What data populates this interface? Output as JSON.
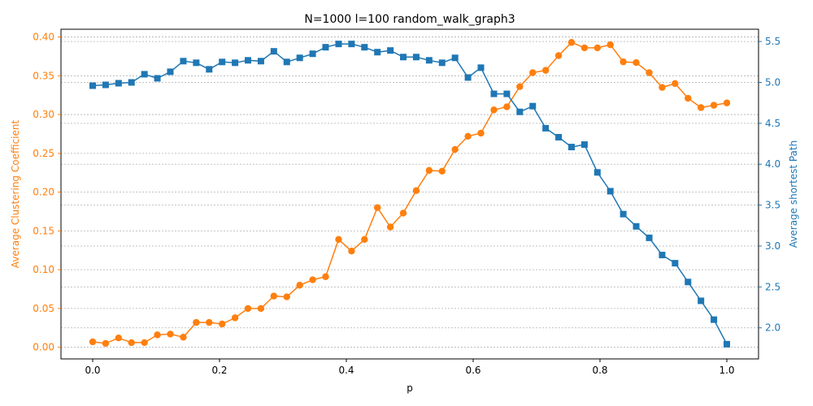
{
  "chart_data": {
    "type": "line",
    "title": "N=1000 l=100 random_walk_graph3",
    "xlabel": "p",
    "y1label": "Average Clustering Coefficient",
    "y2label": "Average shortest Path",
    "xlim": [
      -0.05,
      1.05
    ],
    "y1lim": [
      -0.015,
      0.41
    ],
    "y2lim": [
      1.62,
      5.65
    ],
    "x_ticks": [
      "0.0",
      "0.2",
      "0.4",
      "0.6",
      "0.8",
      "1.0"
    ],
    "x_tick_values": [
      0.0,
      0.2,
      0.4,
      0.6,
      0.8,
      1.0
    ],
    "y1_ticks": [
      "0.00",
      "0.05",
      "0.10",
      "0.15",
      "0.20",
      "0.25",
      "0.30",
      "0.35",
      "0.40"
    ],
    "y1_tick_values": [
      0.0,
      0.05,
      0.1,
      0.15,
      0.2,
      0.25,
      0.3,
      0.35,
      0.4
    ],
    "y2_ticks": [
      "2.0",
      "2.5",
      "3.0",
      "3.5",
      "4.0",
      "4.5",
      "5.0",
      "5.5"
    ],
    "y2_tick_values": [
      2.0,
      2.5,
      3.0,
      3.5,
      4.0,
      4.5,
      5.0,
      5.5
    ],
    "grid": "horizontal",
    "colors": {
      "clustering": "#ff7f0e",
      "path": "#1f77b4"
    },
    "x": [
      0.0,
      0.0204,
      0.0408,
      0.0612,
      0.0816,
      0.102,
      0.1224,
      0.1429,
      0.1633,
      0.1837,
      0.2041,
      0.2245,
      0.2449,
      0.2653,
      0.2857,
      0.3061,
      0.3265,
      0.3469,
      0.3673,
      0.3878,
      0.4082,
      0.4286,
      0.449,
      0.4694,
      0.4898,
      0.5102,
      0.5306,
      0.551,
      0.5714,
      0.5918,
      0.6122,
      0.6327,
      0.6531,
      0.6735,
      0.6939,
      0.7143,
      0.7347,
      0.7551,
      0.7755,
      0.7959,
      0.8163,
      0.8367,
      0.8571,
      0.8776,
      0.898,
      0.9184,
      0.9388,
      0.9592,
      0.9796,
      1.0
    ],
    "series": [
      {
        "axis": "left",
        "marker": "circle",
        "values": [
          0.007,
          0.005,
          0.012,
          0.006,
          0.006,
          0.016,
          0.017,
          0.013,
          0.032,
          0.032,
          0.03,
          0.038,
          0.05,
          0.05,
          0.066,
          0.065,
          0.08,
          0.087,
          0.091,
          0.139,
          0.124,
          0.139,
          0.18,
          0.155,
          0.173,
          0.202,
          0.228,
          0.227,
          0.255,
          0.272,
          0.276,
          0.306,
          0.31,
          0.336,
          0.354,
          0.357,
          0.376,
          0.393,
          0.386,
          0.386,
          0.39,
          0.368,
          0.367,
          0.354,
          0.335,
          0.34,
          0.321,
          0.309,
          0.312,
          0.315
        ]
      },
      {
        "axis": "right",
        "marker": "square",
        "values": [
          4.96,
          4.97,
          4.99,
          5.0,
          5.1,
          5.05,
          5.13,
          5.26,
          5.24,
          5.16,
          5.25,
          5.24,
          5.27,
          5.26,
          5.38,
          5.25,
          5.3,
          5.35,
          5.43,
          5.47,
          5.47,
          5.43,
          5.37,
          5.39,
          5.31,
          5.31,
          5.27,
          5.24,
          5.3,
          5.06,
          5.18,
          4.86,
          4.86,
          4.64,
          4.71,
          4.44,
          4.33,
          4.21,
          4.24,
          3.9,
          3.67,
          3.39,
          3.24,
          3.1,
          2.89,
          2.79,
          2.56,
          2.33,
          2.1,
          1.8
        ]
      }
    ]
  }
}
